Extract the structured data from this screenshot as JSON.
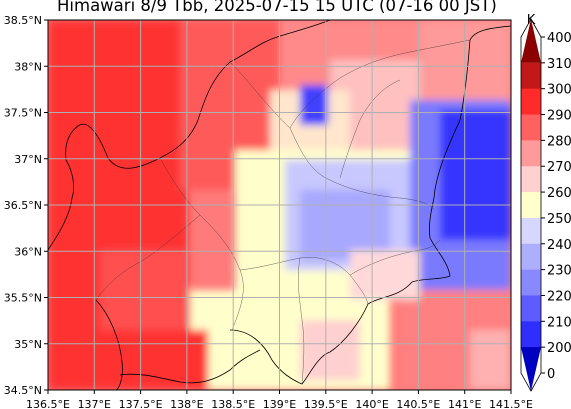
{
  "title": "Himawari 8/9 Tbb, 2025-07-15 15 UTC (07-16 00 JST)",
  "map": {
    "lon_range": [
      136.5,
      141.5
    ],
    "lat_range": [
      34.5,
      38.5
    ],
    "x_ticks": [
      "136.5°E",
      "137°E",
      "137.5°E",
      "138°E",
      "138.5°E",
      "139°E",
      "139.5°E",
      "140°E",
      "140.5°E",
      "141°E",
      "141.5°E"
    ],
    "y_ticks": [
      "38.5°N",
      "38°N",
      "37.5°N",
      "37°N",
      "36.5°N",
      "36°N",
      "35.5°N",
      "35°N",
      "34.5°N"
    ],
    "grid": true
  },
  "colorbar": {
    "unit": "K",
    "levels": [
      "400",
      "310",
      "300",
      "290",
      "280",
      "270",
      "260",
      "250",
      "240",
      "230",
      "220",
      "210",
      "200",
      "0"
    ],
    "colors": [
      "#8b0000",
      "#c21818",
      "#ff2a2a",
      "#ff6060",
      "#ff9a9a",
      "#ffd0d0",
      "#ffffcc",
      "#d6d6ff",
      "#aeaeff",
      "#8888ff",
      "#5c5cff",
      "#2e2eff",
      "#0000c0"
    ],
    "extend": "both"
  },
  "chart_data": {
    "type": "heatmap",
    "title": "Himawari 8/9 Tbb, 2025-07-15 15 UTC (07-16 00 JST)",
    "xlabel": "",
    "ylabel": "",
    "xlim": [
      136.5,
      141.5
    ],
    "ylim": [
      34.5,
      38.5
    ],
    "colorbar_label": "K",
    "colorbar_ticks": [
      0,
      200,
      210,
      220,
      230,
      240,
      250,
      260,
      270,
      280,
      290,
      300,
      310,
      400
    ],
    "grid": true,
    "regions": [
      {
        "lon": [
          136.5,
          138.0
        ],
        "lat": [
          34.5,
          38.5
        ],
        "tbb": 295
      },
      {
        "lon": [
          138.0,
          139.0
        ],
        "lat": [
          36.5,
          38.5
        ],
        "tbb": 288
      },
      {
        "lon": [
          139.0,
          140.5
        ],
        "lat": [
          37.0,
          38.5
        ],
        "tbb": 275
      },
      {
        "lon": [
          139.3,
          139.6
        ],
        "lat": [
          37.4,
          37.8
        ],
        "tbb": 215
      },
      {
        "lon": [
          139.0,
          140.5
        ],
        "lat": [
          35.6,
          37.0
        ],
        "tbb": 245
      },
      {
        "lon": [
          140.5,
          141.5
        ],
        "lat": [
          35.5,
          37.6
        ],
        "tbb": 225
      },
      {
        "lon": [
          138.3,
          140.0
        ],
        "lat": [
          34.5,
          35.6
        ],
        "tbb": 262
      },
      {
        "lon": [
          140.0,
          141.5
        ],
        "lat": [
          34.5,
          35.5
        ],
        "tbb": 280
      }
    ]
  }
}
